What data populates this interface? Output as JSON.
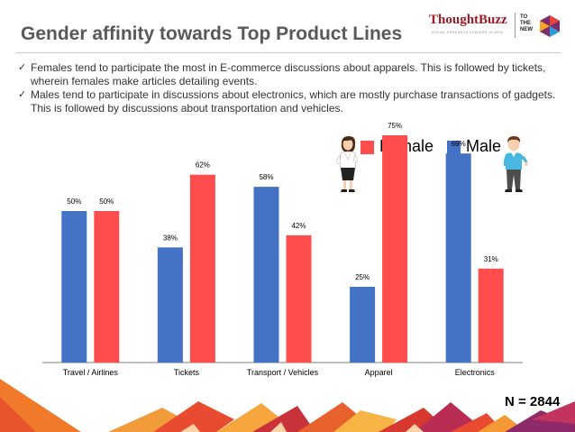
{
  "title": "Gender affinity towards Top Product Lines",
  "logo": {
    "brand": "ThoughtBuzz",
    "tagline": "SOCIAL RESEARCH LEADERS IN ASIA",
    "partner": [
      "TO",
      "THE",
      "NEW"
    ]
  },
  "bullets": [
    "Females tend to participate the most in E-commerce discussions about apparels. This is followed by tickets, wherein females make articles detailing events.",
    "Males tend to participate in discussions about electronics, which are mostly purchase transactions of gadgets. This is followed by discussions about transportation and vehicles."
  ],
  "legend": {
    "female": "Female",
    "male": "Male"
  },
  "sample_size": "N = 2844",
  "colors": {
    "male": "#4472c4",
    "female": "#ff4d4d",
    "title": "#595959",
    "axis": "#7f7f7f"
  },
  "chart_data": {
    "type": "bar",
    "title": "",
    "xlabel": "",
    "ylabel": "",
    "ylim": [
      0,
      100
    ],
    "grid": false,
    "categories": [
      "Travel / Airlines",
      "Tickets",
      "Transport / Vehicles",
      "Apparel",
      "Electronics"
    ],
    "series": [
      {
        "name": "Male",
        "values": [
          50,
          38,
          58,
          25,
          69
        ],
        "labels": [
          "50%",
          "38%",
          "58%",
          "25%",
          "69%"
        ]
      },
      {
        "name": "Female",
        "values": [
          50,
          62,
          42,
          75,
          31
        ],
        "labels": [
          "50%",
          "62%",
          "42%",
          "75%",
          "31%"
        ]
      }
    ]
  }
}
